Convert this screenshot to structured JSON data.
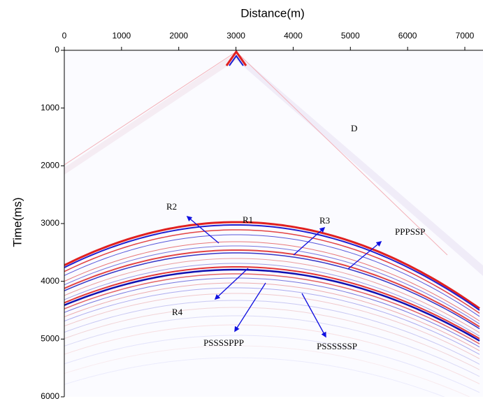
{
  "chart_data": {
    "type": "image",
    "x_label": "Distance(m)",
    "y_label": "Time(ms)",
    "xlim": [
      0,
      7300
    ],
    "ylim": [
      0,
      6000
    ],
    "xticks": [
      0,
      1000,
      2000,
      3000,
      4000,
      5000,
      6000,
      7000
    ],
    "yticks": [
      0,
      1000,
      2000,
      3000,
      4000,
      5000,
      6000
    ],
    "annotations": [
      "D",
      "R1",
      "R2",
      "R3",
      "PPPSSP",
      "R4",
      "PSSSSPPP",
      "PSSSSSSP"
    ]
  }
}
